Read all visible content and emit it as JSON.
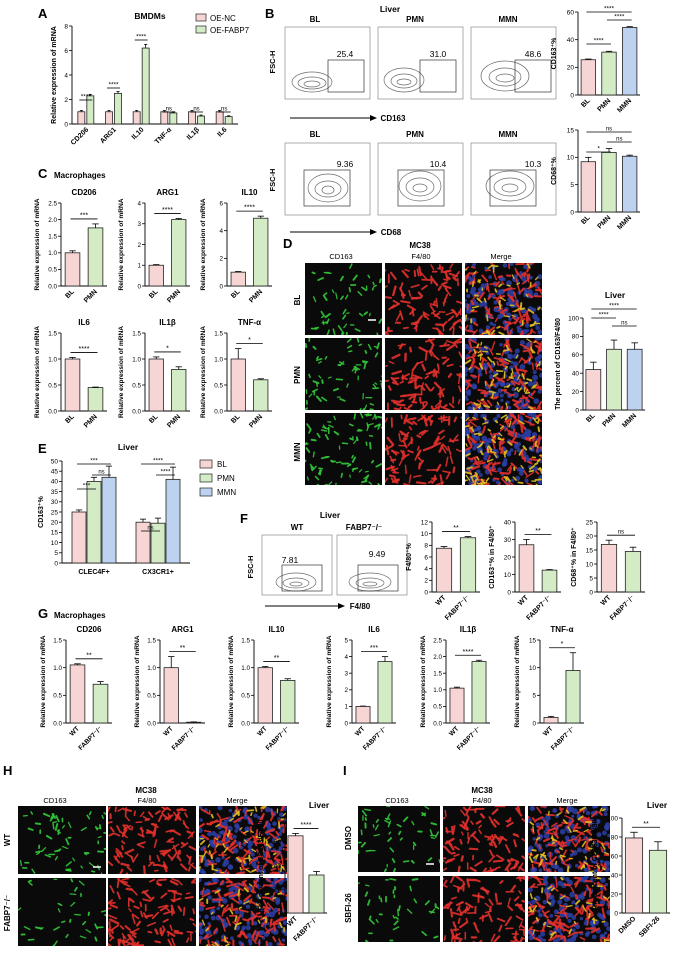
{
  "colors": {
    "pink": "#f8d5d5",
    "green": "#d3ecc6",
    "blue": "#bcd2ef",
    "bar_edge": "#222",
    "err": "#000",
    "img_bg": "#0a0a0a",
    "green_cell": "#33c93a",
    "red_cell": "#e3302c",
    "blue_nuc": "#2d3fa8",
    "flow": "#6c6c6c"
  },
  "ylabels": {
    "rel": "Relative expression of mRNA",
    "cd163pct": "CD163⁺%",
    "cd68pct": "CD68⁺%",
    "pctCD163F480": "The percent of CD163/F4/80",
    "f480pct": "F4/80⁺%",
    "cd163inF480": "CD163⁺% in F4/80⁺",
    "cd68inF480": "CD68⁺% in F4/80⁺"
  },
  "microscopy": {
    "channels": [
      "CD163",
      "F4/80",
      "Merge"
    ],
    "model": "MC38"
  },
  "flow_labels": {
    "fsc": "FSC-H",
    "cd163": "CD163",
    "cd68": "CD68",
    "f480": "F4/80"
  },
  "panels": {
    "A": {
      "letter": "A",
      "title": "BMDMs",
      "legend": [
        "OE-NC",
        "OE-FABP7"
      ]
    },
    "B": {
      "letter": "B",
      "title": "Liver",
      "row1": {
        "groups": [
          "BL",
          "PMN",
          "MMN"
        ],
        "values": [
          "25.4",
          "31.0",
          "48.6"
        ]
      },
      "row2": {
        "groups": [
          "BL",
          "PMN",
          "MMN"
        ],
        "values": [
          "9.36",
          "10.4",
          "10.3"
        ]
      }
    },
    "C": {
      "letter": "C",
      "title": "Macrophages"
    },
    "D": {
      "letter": "D",
      "rows": [
        "BL",
        "PMN",
        "MMN"
      ],
      "chart_title": "Liver"
    },
    "E": {
      "letter": "E",
      "title": "Liver",
      "legend": [
        "BL",
        "PMN",
        "MMN"
      ]
    },
    "F": {
      "letter": "F",
      "title": "Liver",
      "groups": [
        "WT",
        "FABP7⁻/⁻"
      ],
      "values": [
        "7.81",
        "9.49"
      ]
    },
    "G": {
      "letter": "G",
      "title": "Macrophages"
    },
    "H": {
      "letter": "H",
      "rows": [
        "WT",
        "FABP7⁻/⁻"
      ],
      "chart_title": "Liver"
    },
    "I": {
      "letter": "I",
      "rows": [
        "DMSO",
        "SBFI-26"
      ],
      "chart_title": "Liver"
    }
  },
  "chart_data": [
    {
      "id": "A",
      "type": "bar",
      "categories": [
        "CD206",
        "ARG1",
        "IL10",
        "TNF-α",
        "IL1β",
        "IL6"
      ],
      "series": [
        {
          "name": "OE-NC",
          "values": [
            1.0,
            1.0,
            1.0,
            1.0,
            1.0,
            1.0
          ]
        },
        {
          "name": "OE-FABP7",
          "values": [
            2.3,
            2.5,
            6.2,
            0.9,
            0.65,
            0.6
          ]
        }
      ],
      "errors": [
        [
          0.1,
          0.1,
          0.1,
          0.1,
          0.1,
          0.1
        ],
        [
          0.12,
          0.15,
          0.3,
          0.1,
          0.08,
          0.07
        ]
      ],
      "ylabel": "Relative expression of mRNA",
      "ylim": [
        0,
        8
      ],
      "yticks": [
        0,
        2,
        4,
        6,
        8
      ],
      "sig": [
        "****",
        "****",
        "****",
        "ns",
        "ns",
        "ns"
      ]
    },
    {
      "id": "B1",
      "type": "bar",
      "categories": [
        "BL",
        "PMN",
        "MMN"
      ],
      "values": [
        25.5,
        31,
        48.8
      ],
      "errors": [
        0.5,
        0.6,
        0.6
      ],
      "ylabel": "CD163⁺%",
      "ylim": [
        0,
        60
      ],
      "yticks": [
        0,
        20,
        40,
        60
      ],
      "sig": [
        [
          "BL",
          "MMN",
          "****"
        ],
        [
          "PMN",
          "MMN",
          "****"
        ],
        [
          "BL",
          "PMN",
          "****"
        ]
      ]
    },
    {
      "id": "B2",
      "type": "bar",
      "categories": [
        "BL",
        "PMN",
        "MMN"
      ],
      "values": [
        9.2,
        10.9,
        10.2
      ],
      "errors": [
        0.8,
        0.7,
        0.2
      ],
      "ylabel": "CD68⁺%",
      "ylim": [
        0,
        15
      ],
      "yticks": [
        0,
        5,
        10,
        15
      ],
      "sig": [
        [
          "BL",
          "MMN",
          "ns"
        ],
        [
          "PMN",
          "MMN",
          "ns"
        ],
        [
          "BL",
          "PMN",
          "*"
        ]
      ]
    },
    {
      "id": "C1",
      "type": "bar",
      "title": "CD206",
      "categories": [
        "BL",
        "PMN"
      ],
      "values": [
        1.0,
        1.75
      ],
      "errors": [
        0.06,
        0.12
      ],
      "ylim": [
        0,
        2.5
      ],
      "yticks": [
        0,
        0.5,
        1.0,
        1.5,
        2.0,
        2.5
      ],
      "sig": "***"
    },
    {
      "id": "C2",
      "type": "bar",
      "title": "ARG1",
      "categories": [
        "BL",
        "PMN"
      ],
      "values": [
        1.0,
        3.2
      ],
      "errors": [
        0.03,
        0.05
      ],
      "ylim": [
        0,
        4
      ],
      "yticks": [
        0,
        1,
        2,
        3,
        4
      ],
      "sig": "****"
    },
    {
      "id": "C3",
      "type": "bar",
      "title": "IL10",
      "categories": [
        "BL",
        "PMN"
      ],
      "values": [
        1.0,
        4.9
      ],
      "errors": [
        0.05,
        0.15
      ],
      "ylim": [
        0,
        6
      ],
      "yticks": [
        0,
        2,
        4,
        6
      ],
      "sig": "****"
    },
    {
      "id": "C4",
      "type": "bar",
      "title": "IL6",
      "categories": [
        "BL",
        "PMN"
      ],
      "values": [
        1.0,
        0.45
      ],
      "errors": [
        0.03,
        0.01
      ],
      "ylim": [
        0,
        1.5
      ],
      "yticks": [
        0,
        0.5,
        1.0,
        1.5
      ],
      "sig": "****"
    },
    {
      "id": "C5",
      "type": "bar",
      "title": "IL1β",
      "categories": [
        "BL",
        "PMN"
      ],
      "values": [
        1.0,
        0.8
      ],
      "errors": [
        0.04,
        0.05
      ],
      "ylim": [
        0,
        1.5
      ],
      "yticks": [
        0,
        0.5,
        1.0,
        1.5
      ],
      "sig": "*"
    },
    {
      "id": "C6",
      "type": "bar",
      "title": "TNF-α",
      "categories": [
        "BL",
        "PMN"
      ],
      "values": [
        1.0,
        0.6
      ],
      "errors": [
        0.2,
        0.02
      ],
      "ylim": [
        0,
        1.5
      ],
      "yticks": [
        0,
        0.5,
        1.0,
        1.5
      ],
      "sig": "*"
    },
    {
      "id": "D",
      "type": "bar",
      "categories": [
        "BL",
        "PMN",
        "MMN"
      ],
      "values": [
        44,
        66,
        66
      ],
      "errors": [
        8,
        10,
        7
      ],
      "ylabel": "The percent of CD163/F4/80",
      "ylim": [
        0,
        100
      ],
      "yticks": [
        0,
        20,
        40,
        60,
        80,
        100
      ],
      "sig": [
        [
          "BL",
          "MMN",
          "****"
        ],
        [
          "BL",
          "PMN",
          "****"
        ],
        [
          "PMN",
          "MMN",
          "ns"
        ]
      ]
    },
    {
      "id": "E",
      "type": "bar",
      "categories": [
        "CLEC4F+",
        "CX3CR1+"
      ],
      "series": [
        {
          "name": "BL",
          "values": [
            25,
            20
          ]
        },
        {
          "name": "PMN",
          "values": [
            40,
            19.5
          ]
        },
        {
          "name": "MMN",
          "values": [
            42,
            41
          ]
        }
      ],
      "errors": [
        [
          1,
          1.5
        ],
        [
          2,
          2.5
        ],
        [
          5.5,
          6
        ]
      ],
      "ylabel": "CD163⁺%",
      "ylim": [
        0,
        50
      ],
      "yticks": [
        0,
        5,
        10,
        15,
        20,
        25,
        30,
        35,
        40,
        45,
        50
      ]
    },
    {
      "id": "F1",
      "type": "bar",
      "categories": [
        "WT",
        "FABP7⁻/⁻"
      ],
      "values": [
        7.5,
        9.3
      ],
      "errors": [
        0.3,
        0.2
      ],
      "ylabel": "F4/80⁺%",
      "ylim": [
        0,
        12
      ],
      "yticks": [
        0,
        2,
        4,
        6,
        8,
        10,
        12
      ],
      "sig": "**"
    },
    {
      "id": "F2",
      "type": "bar",
      "categories": [
        "WT",
        "FABP7⁻/⁻"
      ],
      "values": [
        27,
        12.5
      ],
      "errors": [
        3,
        0.3
      ],
      "ylabel": "CD163⁺% in F4/80⁺",
      "ylim": [
        0,
        40
      ],
      "yticks": [
        0,
        10,
        20,
        30,
        40
      ],
      "sig": "**"
    },
    {
      "id": "F3",
      "type": "bar",
      "categories": [
        "WT",
        "FABP7⁻/⁻"
      ],
      "values": [
        17,
        14.5
      ],
      "errors": [
        1.5,
        1.5
      ],
      "ylabel": "CD68⁺% in F4/80⁺",
      "ylim": [
        0,
        25
      ],
      "yticks": [
        0,
        5,
        10,
        15,
        20,
        25
      ],
      "sig": "ns"
    },
    {
      "id": "G1",
      "type": "bar",
      "title": "CD206",
      "categories": [
        "WT",
        "FABP7⁻/⁻"
      ],
      "values": [
        1.05,
        0.7
      ],
      "errors": [
        0.02,
        0.05
      ],
      "ylim": [
        0,
        1.5
      ],
      "yticks": [
        0,
        0.5,
        1.0,
        1.5
      ],
      "sig": "**"
    },
    {
      "id": "G2",
      "type": "bar",
      "title": "ARG1",
      "categories": [
        "WT",
        "FABP7⁻/⁻"
      ],
      "values": [
        1.0,
        0.01
      ],
      "errors": [
        0.2,
        0.01
      ],
      "ylim": [
        0,
        1.5
      ],
      "yticks": [
        0,
        0.5,
        1.0,
        1.5
      ],
      "sig": "**"
    },
    {
      "id": "G3",
      "type": "bar",
      "title": "IL10",
      "categories": [
        "WT",
        "FABP7⁻/⁻"
      ],
      "values": [
        1.0,
        0.77
      ],
      "errors": [
        0.02,
        0.03
      ],
      "ylim": [
        0,
        1.5
      ],
      "yticks": [
        0,
        0.5,
        1.0,
        1.5
      ],
      "sig": "**"
    },
    {
      "id": "G4",
      "type": "bar",
      "title": "IL6",
      "categories": [
        "WT",
        "FABP7⁻/⁻"
      ],
      "values": [
        1.0,
        3.7
      ],
      "errors": [
        0.02,
        0.3
      ],
      "ylim": [
        0,
        5
      ],
      "yticks": [
        0,
        1,
        2,
        3,
        4,
        5
      ],
      "sig": "***"
    },
    {
      "id": "G5",
      "type": "bar",
      "title": "IL1β",
      "categories": [
        "WT",
        "FABP7⁻/⁻"
      ],
      "values": [
        1.05,
        1.85
      ],
      "errors": [
        0.03,
        0.04
      ],
      "ylim": [
        0,
        2.5
      ],
      "yticks": [
        0,
        0.5,
        1.0,
        1.5,
        2.0,
        2.5
      ],
      "sig": "****"
    },
    {
      "id": "G6",
      "type": "bar",
      "title": "TNF-α",
      "categories": [
        "WT",
        "FABP7⁻/⁻"
      ],
      "values": [
        1.0,
        9.5
      ],
      "errors": [
        0.2,
        3.2
      ],
      "ylim": [
        0,
        15
      ],
      "yticks": [
        0,
        5,
        10,
        15
      ],
      "sig": "*"
    },
    {
      "id": "H",
      "type": "bar",
      "categories": [
        "WT",
        "FABP7⁻/⁻"
      ],
      "values": [
        65,
        32
      ],
      "errors": [
        2,
        3
      ],
      "ylabel": "The percent of CD163/F4/80",
      "ylim": [
        0,
        80
      ],
      "yticks": [
        0,
        20,
        40,
        60,
        80
      ],
      "sig": "****"
    },
    {
      "id": "I",
      "type": "bar",
      "categories": [
        "DMSO",
        "SBFI-26"
      ],
      "values": [
        79,
        66
      ],
      "errors": [
        6,
        9
      ],
      "ylabel": "The percent of CD163/F4/80",
      "ylim": [
        0,
        100
      ],
      "yticks": [
        0,
        20,
        40,
        60,
        80,
        100
      ],
      "sig": "**"
    }
  ]
}
